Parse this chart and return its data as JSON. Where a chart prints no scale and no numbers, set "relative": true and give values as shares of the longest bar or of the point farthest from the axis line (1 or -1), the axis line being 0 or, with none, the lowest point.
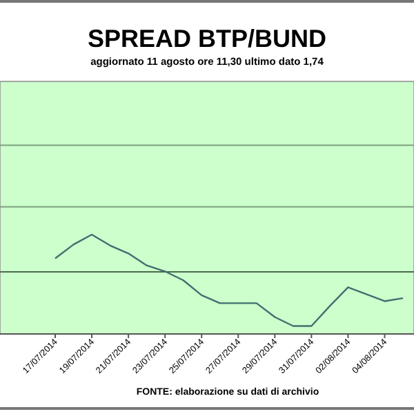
{
  "chart_data": {
    "type": "line",
    "title": "SPREAD BTP/BUND",
    "subtitle": "aggiornato 11 agosto ore 11,30 ultimo dato 1,74",
    "annotations": [
      "FONTE: elaborazione su dati di archivio"
    ],
    "categories": [
      "17/07/2014",
      null,
      "19/07/2014",
      null,
      "21/07/2014",
      null,
      "23/07/2014",
      null,
      "25/07/2014",
      null,
      "27/07/2014",
      null,
      "29/07/2014",
      null,
      "31/07/2014",
      null,
      "02/08/2014",
      null,
      "04/08/2014",
      null
    ],
    "relative": true,
    "ref_lines": [
      {
        "axis": "y",
        "value": 1.9,
        "color": "#7f9f7f"
      },
      {
        "axis": "y",
        "value": 1.28,
        "color": "#7f9f7f"
      },
      {
        "axis": "y",
        "value": 0.625,
        "color": "#4c6a4c"
      }
    ],
    "series": [
      {
        "color": "#3f6f6f",
        "values": [
          0.76,
          0.9,
          1,
          0.89,
          0.81,
          0.69,
          0.63,
          0.54,
          0.39,
          0.31,
          0.31,
          0.31,
          0.17,
          0.08,
          0.08,
          0.28,
          0.47,
          0.4,
          0.33,
          0.36
        ]
      }
    ]
  }
}
